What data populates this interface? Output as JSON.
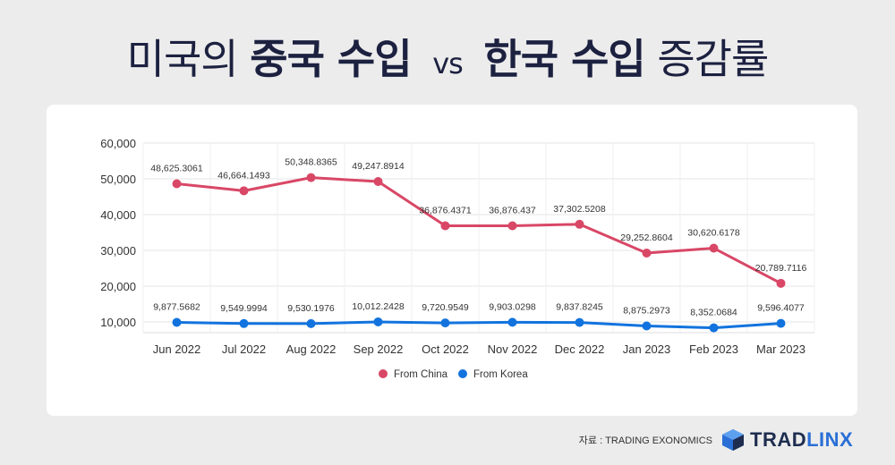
{
  "title": {
    "part1": "미국의",
    "part2": "중국 수입",
    "vs": "vs",
    "part3": "한국 수입",
    "part4": "증감률"
  },
  "source": "자료 : TRADING EXONOMICS",
  "logo": {
    "word_a": "TRAD",
    "word_b": "LINX"
  },
  "colors": {
    "china": "#d94766",
    "korea": "#1273de"
  },
  "chart_data": {
    "type": "line",
    "categories": [
      "Jun 2022",
      "Jul 2022",
      "Aug 2022",
      "Sep 2022",
      "Oct 2022",
      "Nov 2022",
      "Dec 2022",
      "Jan 2023",
      "Feb 2023",
      "Mar 2023"
    ],
    "ylim": [
      7000,
      60000
    ],
    "yticks": [
      10000,
      20000,
      30000,
      40000,
      50000,
      60000
    ],
    "ytick_labels": [
      "10,000",
      "20,000",
      "30,000",
      "40,000",
      "50,000",
      "60,000"
    ],
    "grid": true,
    "legend": "bottom",
    "series": [
      {
        "name": "From China",
        "values": [
          48625.3061,
          46664.1493,
          50348.8365,
          49247.8914,
          36876.4371,
          36876.437,
          37302.5208,
          29252.8604,
          30620.6178,
          20789.7116
        ],
        "labels": [
          "48,625.3061",
          "46,664.1493",
          "50,348.8365",
          "49,247.8914",
          "36,876.4371",
          "36,876.437",
          "37,302.5208",
          "29,252.8604",
          "30,620.6178",
          "20,789.7116"
        ]
      },
      {
        "name": "From Korea",
        "values": [
          9877.5682,
          9549.9994,
          9530.1976,
          10012.2428,
          9720.9549,
          9903.0298,
          9837.8245,
          8875.2973,
          8352.0684,
          9596.4077
        ],
        "labels": [
          "9,877.5682",
          "9,549.9994",
          "9,530.1976",
          "10,012.2428",
          "9,720.9549",
          "9,903.0298",
          "9,837.8245",
          "8,875.2973",
          "8,352.0684",
          "9,596.4077"
        ]
      }
    ]
  }
}
